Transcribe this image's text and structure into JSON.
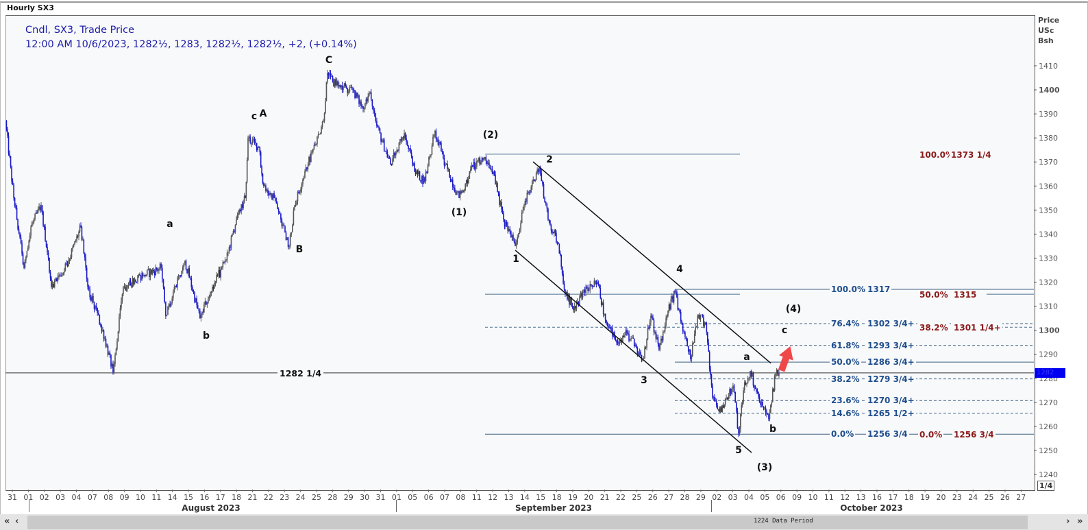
{
  "window": {
    "title": "Hourly SX3"
  },
  "legend": {
    "line1": "Cndl, SX3, Trade Price",
    "line2": "12:00 AM 10/6/2023, 1282½, 1283, 1282½, 1282½, +2, (+0.14%)"
  },
  "axis_unit": {
    "l1": "Price",
    "l2": "USc",
    "l3": "Bsh"
  },
  "current_price_tag": "1282",
  "fraction_mode": "1/4",
  "months": [
    "August 2023",
    "September 2023",
    "October 2023"
  ],
  "scrollbar": {
    "status": "1224 Data Period",
    "first": "«",
    "prev": "‹",
    "next": "›",
    "last": "»"
  },
  "horizontal_line": {
    "value": 1282.25,
    "label": "1282 1/4"
  },
  "wave_labels": [
    "C",
    "c",
    "A",
    "a",
    "b",
    "B",
    "(2)",
    "(1)",
    "2",
    "1",
    "4",
    "3",
    "5",
    "(3)",
    "a",
    "b",
    "c",
    "(4)"
  ],
  "fib_blue": [
    {
      "pct": "100.0%",
      "label": "1317",
      "value": 1317,
      "style": "solid"
    },
    {
      "pct": "76.4%",
      "label": "1302 3/4+",
      "value": 1302.75,
      "style": "dashed"
    },
    {
      "pct": "61.8%",
      "label": "1293 3/4+",
      "value": 1293.75,
      "style": "dashed"
    },
    {
      "pct": "50.0%",
      "label": "1286 3/4+",
      "value": 1286.75,
      "style": "solid"
    },
    {
      "pct": "38.2%",
      "label": "1279 3/4+",
      "value": 1279.75,
      "style": "dashed"
    },
    {
      "pct": "23.6%",
      "label": "1270 3/4+",
      "value": 1270.75,
      "style": "dashed"
    },
    {
      "pct": "14.6%",
      "label": "1265 1/2+",
      "value": 1265.5,
      "style": "dashed"
    },
    {
      "pct": "0.0%",
      "label": "1256 3/4",
      "value": 1256.75,
      "style": "solid"
    }
  ],
  "fib_red": [
    {
      "pct": "100.0%",
      "label": "1373 1/4",
      "value": 1373.25,
      "style": "solid"
    },
    {
      "pct": "50.0%",
      "label": "1315",
      "value": 1315,
      "style": "solid"
    },
    {
      "pct": "38.2%",
      "label": "1301 1/4+",
      "value": 1301.25,
      "style": "dashed"
    },
    {
      "pct": "0.0%",
      "label": "1256 3/4",
      "value": 1256.75,
      "style": "solid"
    }
  ],
  "colors": {
    "down": "#1a1ac8",
    "up": "#555555",
    "fib_blue": "#1f4e8c",
    "fib_red": "#8b1a1a",
    "arrow": "#f04848",
    "tag": "#0000f0"
  },
  "chart_data": {
    "type": "candlestick",
    "title": "Hourly SX3",
    "series_name": "Cndl, SX3, Trade Price",
    "ylabel": "Price USc Bsh",
    "ylim": [
      1235,
      1415
    ],
    "y_ticks": [
      1240,
      1250,
      1260,
      1270,
      1280,
      1290,
      1300,
      1310,
      1320,
      1330,
      1340,
      1350,
      1360,
      1370,
      1380,
      1390,
      1400,
      1410
    ],
    "x_ticks": [
      "31",
      "01",
      "02",
      "03",
      "04",
      "07",
      "08",
      "09",
      "10",
      "11",
      "14",
      "15",
      "16",
      "17",
      "18",
      "21",
      "22",
      "23",
      "24",
      "25",
      "28",
      "29",
      "30",
      "31",
      "01",
      "05",
      "06",
      "07",
      "08",
      "11",
      "12",
      "13",
      "14",
      "15",
      "18",
      "19",
      "20",
      "21",
      "22",
      "25",
      "26",
      "27",
      "28",
      "29",
      "02",
      "03",
      "04",
      "05",
      "06",
      "09",
      "10",
      "11",
      "12",
      "13",
      "16",
      "17",
      "18",
      "19",
      "20",
      "23",
      "24",
      "25",
      "26",
      "27"
    ],
    "price_path_day_index_vs_price": [
      [
        -0.43,
        1387
      ],
      [
        0.09,
        1355
      ],
      [
        0.73,
        1326
      ],
      [
        1.16,
        1343
      ],
      [
        1.8,
        1352
      ],
      [
        2.44,
        1318
      ],
      [
        3.51,
        1329
      ],
      [
        4.28,
        1343
      ],
      [
        4.71,
        1318
      ],
      [
        5.65,
        1300
      ],
      [
        6.29,
        1282.5
      ],
      [
        6.93,
        1318
      ],
      [
        8.22,
        1323
      ],
      [
        9.29,
        1326
      ],
      [
        9.58,
        1306
      ],
      [
        10.78,
        1329
      ],
      [
        11.72,
        1305
      ],
      [
        12.49,
        1318
      ],
      [
        13.35,
        1329
      ],
      [
        13.99,
        1346
      ],
      [
        14.55,
        1355
      ],
      [
        14.72,
        1380
      ],
      [
        15.4,
        1376
      ],
      [
        15.7,
        1360
      ],
      [
        16.35,
        1355
      ],
      [
        16.77,
        1346
      ],
      [
        17.29,
        1335
      ],
      [
        17.63,
        1352
      ],
      [
        18.27,
        1366
      ],
      [
        18.91,
        1377
      ],
      [
        19.43,
        1387
      ],
      [
        19.68,
        1407
      ],
      [
        20.2,
        1402
      ],
      [
        21.27,
        1400
      ],
      [
        21.91,
        1392
      ],
      [
        22.34,
        1399
      ],
      [
        22.76,
        1385
      ],
      [
        23.62,
        1369
      ],
      [
        24.48,
        1382
      ],
      [
        25.12,
        1366
      ],
      [
        25.76,
        1362
      ],
      [
        26.4,
        1383
      ],
      [
        27.04,
        1369
      ],
      [
        27.9,
        1355
      ],
      [
        28.75,
        1368
      ],
      [
        29.52,
        1372
      ],
      [
        30.04,
        1366
      ],
      [
        30.68,
        1346
      ],
      [
        31.41,
        1335
      ],
      [
        31.96,
        1352
      ],
      [
        32.91,
        1368
      ],
      [
        33.46,
        1346
      ],
      [
        34.1,
        1336
      ],
      [
        34.53,
        1315
      ],
      [
        35.17,
        1309
      ],
      [
        35.82,
        1318
      ],
      [
        36.54,
        1320
      ],
      [
        37.1,
        1303
      ],
      [
        37.74,
        1295
      ],
      [
        38.38,
        1299
      ],
      [
        39.37,
        1288
      ],
      [
        39.88,
        1306
      ],
      [
        40.39,
        1292
      ],
      [
        40.95,
        1308
      ],
      [
        41.38,
        1316
      ],
      [
        41.81,
        1303
      ],
      [
        42.36,
        1288
      ],
      [
        42.79,
        1306
      ],
      [
        43.3,
        1303
      ],
      [
        43.73,
        1272
      ],
      [
        44.16,
        1266
      ],
      [
        44.59,
        1272
      ],
      [
        45.01,
        1277
      ],
      [
        45.36,
        1257
      ],
      [
        45.66,
        1275
      ],
      [
        46.08,
        1283
      ],
      [
        46.73,
        1269
      ],
      [
        47.24,
        1263
      ],
      [
        47.67,
        1282
      ],
      [
        47.88,
        1282.5
      ]
    ],
    "channel_lines": [
      {
        "name": "upper",
        "from": [
          32.52,
          1370.1
        ],
        "to": [
          47.37,
          1286.3
        ]
      },
      {
        "name": "lower",
        "from": [
          31.41,
          1333.3
        ],
        "to": [
          46.17,
          1249.1
        ]
      }
    ],
    "last_price": 1282.5,
    "grid": false,
    "legend": "top-left"
  }
}
